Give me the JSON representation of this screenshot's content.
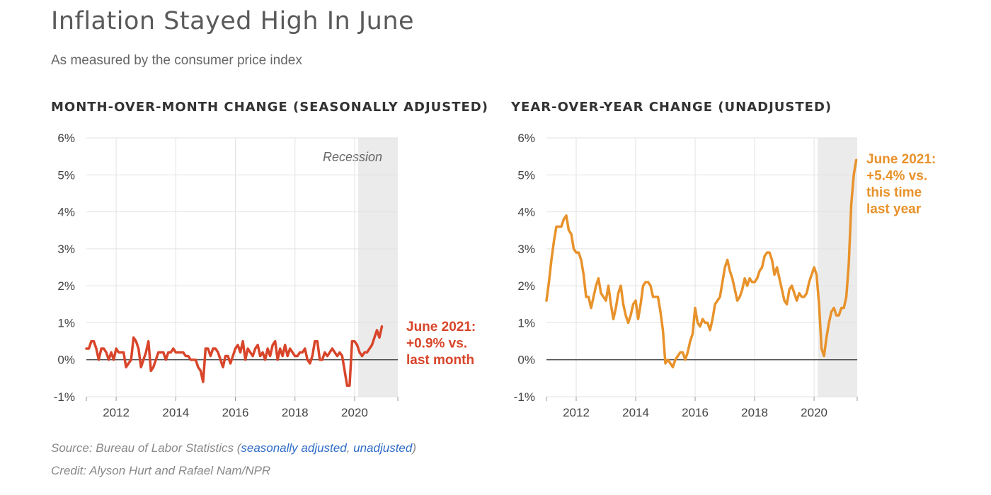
{
  "title": "Inflation Stayed High In June",
  "subtitle": "As measured by the consumer price index",
  "footer": {
    "source_prefix": "Source: Bureau of Labor Statistics (",
    "link1": "seasonally adjusted",
    "sep": ", ",
    "link2": "unadjusted",
    "source_suffix": ")",
    "credit": "Credit: Alyson Hurt and Rafael Nam/NPR"
  },
  "colors": {
    "mom": "#d8452a",
    "yoy": "#e8922b",
    "recession": "#ebebeb",
    "grid": "#e2e2e2",
    "axis": "#333333"
  },
  "chart_data": [
    {
      "type": "line",
      "title": "MONTH-OVER-MONTH CHANGE (SEASONALLY ADJUSTED)",
      "xlabel": "",
      "ylabel": "",
      "xlim": [
        2011.0,
        2021.45
      ],
      "ylim": [
        -1,
        6
      ],
      "y_ticks": [
        "-1%",
        "0%",
        "1%",
        "2%",
        "3%",
        "4%",
        "5%",
        "6%"
      ],
      "x_ticks": [
        "2012",
        "2014",
        "2016",
        "2018",
        "2020"
      ],
      "grid": true,
      "recession": {
        "label": "Recession",
        "start": 2020.12,
        "end": 2021.45
      },
      "annotation": [
        "June 2021:",
        "+0.9% vs.",
        "last month"
      ],
      "series": [
        {
          "start": 2011.0,
          "step_months": 1,
          "values": [
            0.3,
            0.3,
            0.5,
            0.5,
            0.3,
            0.0,
            0.3,
            0.3,
            0.2,
            0.0,
            0.2,
            0.0,
            0.3,
            0.2,
            0.2,
            0.2,
            -0.2,
            -0.1,
            0.0,
            0.6,
            0.5,
            0.3,
            -0.2,
            0.0,
            0.2,
            0.5,
            -0.3,
            -0.2,
            0.0,
            0.2,
            0.2,
            0.2,
            0.0,
            0.2,
            0.2,
            0.3,
            0.2,
            0.2,
            0.2,
            0.2,
            0.1,
            0.1,
            0.0,
            0.0,
            0.0,
            -0.2,
            -0.3,
            -0.6,
            0.3,
            0.3,
            0.1,
            0.3,
            0.3,
            0.2,
            0.0,
            -0.2,
            0.1,
            0.1,
            -0.1,
            0.1,
            0.3,
            0.4,
            0.2,
            0.5,
            0.0,
            0.3,
            0.2,
            0.1,
            0.3,
            0.4,
            0.1,
            0.2,
            0.0,
            0.3,
            0.1,
            0.4,
            0.5,
            0.0,
            0.3,
            0.1,
            0.4,
            0.1,
            0.3,
            0.2,
            0.1,
            0.1,
            0.2,
            0.2,
            0.3,
            0.0,
            -0.1,
            0.1,
            0.5,
            0.5,
            0.0,
            0.0,
            0.2,
            0.1,
            0.2,
            0.3,
            0.2,
            0.1,
            0.2,
            0.1,
            -0.3,
            -0.7,
            -0.7,
            0.5,
            0.5,
            0.4,
            0.2,
            0.1,
            0.2,
            0.2,
            0.3,
            0.4,
            0.6,
            0.8,
            0.6,
            0.9
          ]
        }
      ]
    },
    {
      "type": "line",
      "title": "YEAR-OVER-YEAR CHANGE (UNADJUSTED)",
      "xlabel": "",
      "ylabel": "",
      "xlim": [
        2011.0,
        2021.45
      ],
      "ylim": [
        -1,
        6
      ],
      "y_ticks": [
        "-1%",
        "0%",
        "1%",
        "2%",
        "3%",
        "4%",
        "5%",
        "6%"
      ],
      "x_ticks": [
        "2012",
        "2014",
        "2016",
        "2018",
        "2020"
      ],
      "grid": true,
      "recession": {
        "label": "",
        "start": 2020.12,
        "end": 2021.45
      },
      "annotation": [
        "June 2021:",
        "+5.4% vs.",
        "this time",
        "last year"
      ],
      "series": [
        {
          "start": 2011.0,
          "step_months": 1,
          "values": [
            1.6,
            2.1,
            2.7,
            3.2,
            3.6,
            3.6,
            3.6,
            3.8,
            3.9,
            3.5,
            3.4,
            3.0,
            2.9,
            2.9,
            2.7,
            2.3,
            1.7,
            1.7,
            1.4,
            1.7,
            2.0,
            2.2,
            1.8,
            1.7,
            1.6,
            2.0,
            1.5,
            1.1,
            1.4,
            1.8,
            2.0,
            1.5,
            1.2,
            1.0,
            1.2,
            1.5,
            1.6,
            1.1,
            1.5,
            2.0,
            2.1,
            2.1,
            2.0,
            1.7,
            1.7,
            1.7,
            1.3,
            0.8,
            -0.1,
            0.0,
            -0.1,
            -0.2,
            0.0,
            0.1,
            0.2,
            0.2,
            0.0,
            0.2,
            0.5,
            0.7,
            1.4,
            1.0,
            0.9,
            1.1,
            1.0,
            1.0,
            0.8,
            1.1,
            1.5,
            1.6,
            1.7,
            2.1,
            2.5,
            2.7,
            2.4,
            2.2,
            1.9,
            1.6,
            1.7,
            1.9,
            2.2,
            2.0,
            2.2,
            2.1,
            2.1,
            2.2,
            2.4,
            2.5,
            2.8,
            2.9,
            2.9,
            2.7,
            2.3,
            2.5,
            2.2,
            1.9,
            1.6,
            1.5,
            1.9,
            2.0,
            1.8,
            1.6,
            1.8,
            1.7,
            1.7,
            1.8,
            2.1,
            2.3,
            2.5,
            2.3,
            1.5,
            0.3,
            0.1,
            0.6,
            1.0,
            1.3,
            1.4,
            1.2,
            1.2,
            1.4,
            1.4,
            1.7,
            2.6,
            4.2,
            5.0,
            5.4
          ]
        }
      ]
    }
  ]
}
